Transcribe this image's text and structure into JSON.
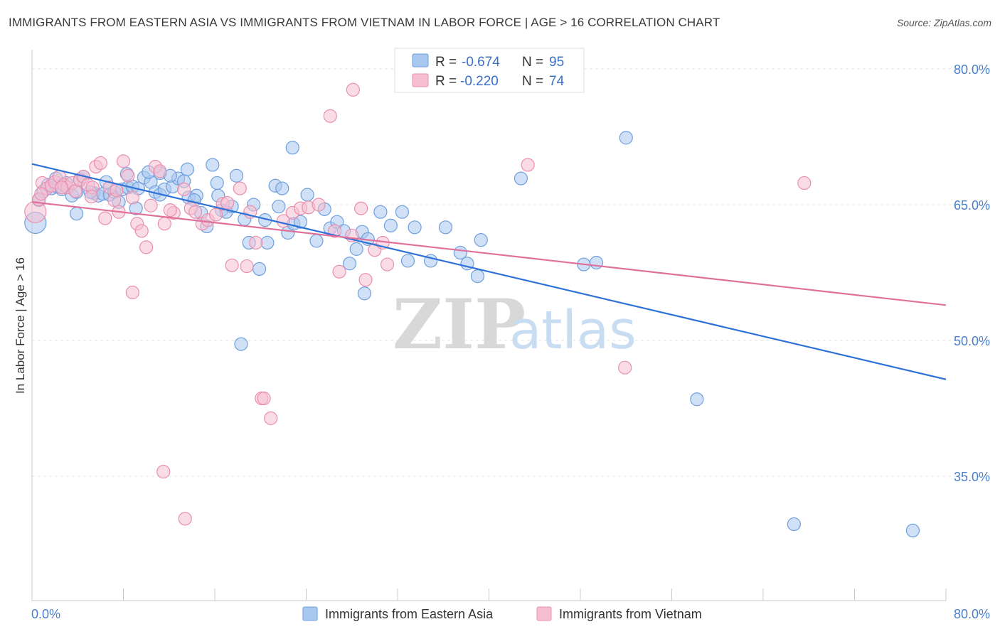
{
  "title": "IMMIGRANTS FROM EASTERN ASIA VS IMMIGRANTS FROM VIETNAM IN LABOR FORCE | AGE > 16 CORRELATION CHART",
  "source": "Source: ZipAtlas.com",
  "watermark": {
    "zip": "ZIP",
    "atlas": "atlas"
  },
  "colors": {
    "blue_fill": "#a9c8f0",
    "blue_stroke": "#6f9fdc",
    "blue_line": "#2f72d6",
    "pink_fill": "#f6bfd1",
    "pink_stroke": "#e98fae",
    "pink_line": "#e0709b",
    "grid": "#e3e3e3",
    "tick_label": "#4a7fc9"
  },
  "legend": {
    "rows": [
      {
        "r_label": "R =",
        "r_value": "-0.674",
        "n_label": "N =",
        "n_value": "95"
      },
      {
        "r_label": "R =",
        "r_value": "-0.220",
        "n_label": "N =",
        "n_value": "74"
      }
    ]
  },
  "chart_data": {
    "type": "scatter",
    "title": "IMMIGRANTS FROM EASTERN ASIA VS IMMIGRANTS FROM VIETNAM IN LABOR FORCE | AGE > 16 CORRELATION CHART",
    "xlabel": "",
    "ylabel": "In Labor Force | Age > 16",
    "xlim": [
      0,
      80
    ],
    "ylim": [
      21,
      82
    ],
    "x_tick_labels": [
      "0.0%",
      "80.0%"
    ],
    "y_ticks": [
      35,
      50,
      65,
      80
    ],
    "y_tick_labels": [
      "35.0%",
      "50.0%",
      "65.0%",
      "80.0%"
    ],
    "grid": true,
    "legend_position": "bottom",
    "series": [
      {
        "name": "Immigrants from Eastern Asia",
        "color": "#a9c8f0",
        "trend": {
          "x": [
            0,
            80
          ],
          "y": [
            69.5,
            45.7
          ]
        },
        "points": [
          [
            0.3,
            63
          ],
          [
            0.6,
            65.5
          ],
          [
            1,
            66.5
          ],
          [
            1.4,
            67.2
          ],
          [
            1.7,
            66.8
          ],
          [
            2.2,
            67
          ],
          [
            2.6,
            66.7
          ],
          [
            3,
            67.4
          ],
          [
            3.5,
            66
          ],
          [
            3.9,
            66.4
          ],
          [
            4.2,
            67.8
          ],
          [
            5.4,
            66.3
          ],
          [
            5.8,
            66
          ],
          [
            6.2,
            66.2
          ],
          [
            6.8,
            66.1
          ],
          [
            7.2,
            66.4
          ],
          [
            7.6,
            65.3
          ],
          [
            7.9,
            66.7
          ],
          [
            8.4,
            66.9
          ],
          [
            8.8,
            67
          ],
          [
            9.3,
            66.8
          ],
          [
            9.8,
            68
          ],
          [
            10.4,
            67.5
          ],
          [
            10.8,
            66.4
          ],
          [
            11.2,
            66.1
          ],
          [
            11.6,
            66.7
          ],
          [
            12.3,
            67
          ],
          [
            12.8,
            67.9
          ],
          [
            13.3,
            67.6
          ],
          [
            13.7,
            65.8
          ],
          [
            14.4,
            66
          ],
          [
            14.8,
            64.1
          ],
          [
            15.3,
            62.6
          ],
          [
            15.8,
            69.4
          ],
          [
            16.3,
            66
          ],
          [
            16.6,
            64.4
          ],
          [
            17.0,
            64.2
          ],
          [
            17.5,
            64.8
          ],
          [
            17.9,
            68.2
          ],
          [
            18.6,
            63.4
          ],
          [
            19.0,
            60.8
          ],
          [
            19.4,
            65
          ],
          [
            19.9,
            57.9
          ],
          [
            20.4,
            63.3
          ],
          [
            20.6,
            60.8
          ],
          [
            21.3,
            67.1
          ],
          [
            21.6,
            64.8
          ],
          [
            21.9,
            66.8
          ],
          [
            22.4,
            61.9
          ],
          [
            22.9,
            62.9
          ],
          [
            23.5,
            63.1
          ],
          [
            24.1,
            66.1
          ],
          [
            24.9,
            61
          ],
          [
            25.6,
            64.5
          ],
          [
            26.1,
            62.4
          ],
          [
            26.7,
            63.1
          ],
          [
            27.3,
            62.1
          ],
          [
            27.8,
            58.5
          ],
          [
            28.4,
            60.1
          ],
          [
            28.9,
            62
          ],
          [
            29.4,
            61.2
          ],
          [
            30.5,
            64.2
          ],
          [
            31.4,
            62.7
          ],
          [
            32.4,
            64.2
          ],
          [
            32.9,
            58.8
          ],
          [
            33.5,
            62.5
          ],
          [
            34.9,
            58.8
          ],
          [
            36.2,
            62.5
          ],
          [
            37.5,
            59.7
          ],
          [
            38.1,
            58.5
          ],
          [
            39.0,
            57.1
          ],
          [
            39.3,
            61.1
          ],
          [
            42.8,
            67.9
          ],
          [
            48.3,
            58.4
          ],
          [
            49.4,
            58.6
          ],
          [
            52.0,
            72.4
          ],
          [
            58.2,
            43.5
          ],
          [
            66.7,
            29.7
          ],
          [
            77.1,
            29
          ],
          [
            11.2,
            68.5
          ],
          [
            29.1,
            55.2
          ],
          [
            18.3,
            49.6
          ],
          [
            22.8,
            71.3
          ],
          [
            3.9,
            64
          ],
          [
            4.5,
            68.1
          ],
          [
            5.1,
            66.4
          ],
          [
            6.5,
            67.5
          ],
          [
            8.3,
            68.4
          ],
          [
            9.1,
            64.6
          ],
          [
            10.2,
            68.6
          ],
          [
            12.1,
            68.2
          ],
          [
            13.6,
            68.9
          ],
          [
            14.2,
            65.5
          ],
          [
            16.2,
            67.4
          ],
          [
            2.1,
            67.9
          ]
        ]
      },
      {
        "name": "Immigrants from Vietnam",
        "color": "#f6bfd1",
        "trend": {
          "x": [
            0,
            80
          ],
          "y": [
            65.3,
            53.9
          ]
        },
        "points": [
          [
            0.3,
            64.2
          ],
          [
            0.6,
            65.6
          ],
          [
            0.9,
            67.4
          ],
          [
            1.3,
            66.8
          ],
          [
            1.7,
            67.1
          ],
          [
            2.0,
            67.5
          ],
          [
            2.4,
            68.1
          ],
          [
            2.8,
            67.2
          ],
          [
            3.1,
            66.9
          ],
          [
            3.5,
            67.4
          ],
          [
            3.8,
            66.5
          ],
          [
            4.2,
            67.7
          ],
          [
            4.5,
            68.1
          ],
          [
            4.9,
            67.2
          ],
          [
            5.3,
            66.9
          ],
          [
            5.6,
            69.2
          ],
          [
            6.0,
            69.6
          ],
          [
            6.4,
            63.5
          ],
          [
            6.8,
            66.9
          ],
          [
            7.2,
            65.5
          ],
          [
            7.6,
            64.2
          ],
          [
            8.0,
            69.8
          ],
          [
            8.4,
            68.2
          ],
          [
            8.8,
            65.8
          ],
          [
            9.2,
            62.9
          ],
          [
            9.6,
            62.1
          ],
          [
            10.0,
            60.3
          ],
          [
            10.4,
            64.9
          ],
          [
            10.8,
            69.2
          ],
          [
            11.2,
            68.7
          ],
          [
            11.6,
            62.9
          ],
          [
            12.4,
            64.1
          ],
          [
            13.3,
            66.7
          ],
          [
            13.9,
            64.6
          ],
          [
            14.3,
            64.2
          ],
          [
            14.9,
            62.9
          ],
          [
            15.4,
            63.3
          ],
          [
            16.1,
            63.9
          ],
          [
            16.7,
            65.1
          ],
          [
            17.1,
            65.2
          ],
          [
            17.5,
            58.3
          ],
          [
            18.2,
            66.8
          ],
          [
            18.8,
            58.2
          ],
          [
            19.1,
            64.2
          ],
          [
            19.6,
            60.8
          ],
          [
            20.1,
            43.6
          ],
          [
            20.3,
            43.6
          ],
          [
            20.9,
            41.4
          ],
          [
            22.8,
            64.1
          ],
          [
            22.0,
            63.2
          ],
          [
            23.5,
            64.6
          ],
          [
            24.2,
            64.7
          ],
          [
            25.1,
            65
          ],
          [
            26.1,
            74.8
          ],
          [
            26.5,
            62.1
          ],
          [
            26.9,
            57.6
          ],
          [
            28.0,
            61.6
          ],
          [
            28.8,
            64.6
          ],
          [
            28.1,
            77.7
          ],
          [
            29.2,
            56.7
          ],
          [
            30.0,
            60
          ],
          [
            30.7,
            60.8
          ],
          [
            31.1,
            58.4
          ],
          [
            43.4,
            69.4
          ],
          [
            51.9,
            47
          ],
          [
            67.6,
            67.4
          ],
          [
            11.5,
            35.5
          ],
          [
            13.4,
            30.3
          ],
          [
            8.8,
            55.3
          ],
          [
            5.2,
            65.9
          ],
          [
            0.8,
            66.2
          ],
          [
            2.6,
            66.9
          ],
          [
            7.4,
            66.6
          ],
          [
            12.1,
            64.4
          ]
        ]
      }
    ]
  }
}
